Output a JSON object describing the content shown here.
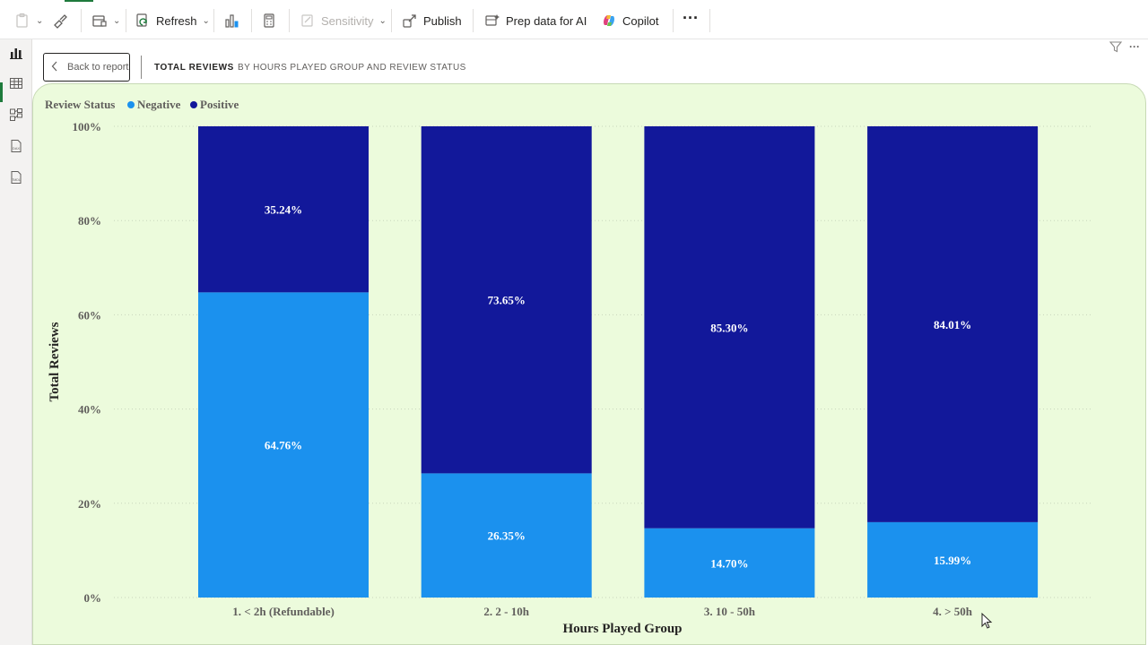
{
  "toolbar": {
    "refresh": "Refresh",
    "sensitivity": "Sensitivity",
    "publish": "Publish",
    "prep": "Prep data for AI",
    "copilot": "Copilot",
    "more": "···"
  },
  "header": {
    "back": "Back to report",
    "title": "TOTAL REVIEWS",
    "subtitle": "BY HOURS PLAYED GROUP AND REVIEW STATUS"
  },
  "colors": {
    "negative": "#1b91ee",
    "positive": "#12189a",
    "panel": "#ecfbdc"
  },
  "chart_data": {
    "type": "bar",
    "stacked": "100%",
    "legend_title": "Review Status",
    "legend_position": "top-left",
    "categories": [
      "1. < 2h (Refundable)",
      "2. 2 - 10h",
      "3. 10 - 50h",
      "4. > 50h"
    ],
    "series": [
      {
        "name": "Negative",
        "values": [
          64.76,
          26.35,
          14.7,
          15.99
        ],
        "labels": [
          "64.76%",
          "26.35%",
          "14.70%",
          "15.99%"
        ]
      },
      {
        "name": "Positive",
        "values": [
          35.24,
          73.65,
          85.3,
          84.01
        ],
        "labels": [
          "35.24%",
          "73.65%",
          "85.30%",
          "84.01%"
        ]
      }
    ],
    "xlabel": "Hours Played Group",
    "ylabel": "Total Reviews",
    "ylim": [
      0,
      100
    ],
    "yticks": [
      "0%",
      "20%",
      "40%",
      "60%",
      "80%",
      "100%"
    ],
    "grid": true
  }
}
